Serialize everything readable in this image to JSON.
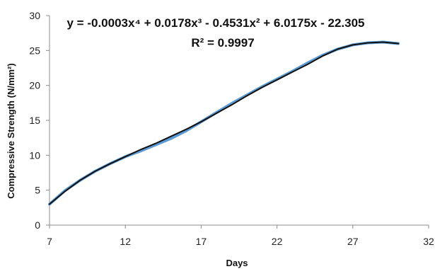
{
  "chart_data": {
    "type": "line",
    "xlabel": "Days",
    "ylabel": "Compressive Strength (N/mm²)",
    "xlim": [
      7,
      32
    ],
    "ylim": [
      0,
      30
    ],
    "x_ticks": [
      7,
      12,
      17,
      22,
      27,
      32
    ],
    "y_ticks": [
      0,
      5,
      10,
      15,
      20,
      25,
      30
    ],
    "grid": false,
    "annotations": {
      "equation": "y = -0.0003x⁴ + 0.0178x³ - 0.4531x² + 6.0175x - 22.305",
      "r_squared": "R² = 0.9997"
    },
    "series": [
      {
        "kind": "data",
        "color": "#5b9bd5",
        "x": [
          7,
          8,
          9,
          10,
          11,
          12,
          13,
          14,
          15,
          16,
          17,
          18,
          19,
          20,
          21,
          22,
          23,
          24,
          25,
          26,
          27,
          28,
          29,
          30
        ],
        "y": [
          3.0,
          4.9,
          6.4,
          7.7,
          8.8,
          9.8,
          10.6,
          11.5,
          12.4,
          13.5,
          14.8,
          16.1,
          17.4,
          18.6,
          19.8,
          20.9,
          22.0,
          23.2,
          24.3,
          25.2,
          25.8,
          26.1,
          26.2,
          26.0
        ]
      },
      {
        "kind": "trendline",
        "color": "#111111",
        "x": [
          7,
          8,
          9,
          10,
          11,
          12,
          13,
          14,
          15,
          16,
          17,
          18,
          19,
          20,
          21,
          22,
          23,
          24,
          25,
          26,
          27,
          28,
          29,
          30
        ],
        "y": [
          3.0,
          4.8,
          6.4,
          7.7,
          8.8,
          9.8,
          10.8,
          11.7,
          12.7,
          13.7,
          14.8,
          16.0,
          17.2,
          18.5,
          19.7,
          20.8,
          21.9,
          23.0,
          24.2,
          25.2,
          25.8,
          26.1,
          26.2,
          26.0
        ]
      }
    ]
  }
}
